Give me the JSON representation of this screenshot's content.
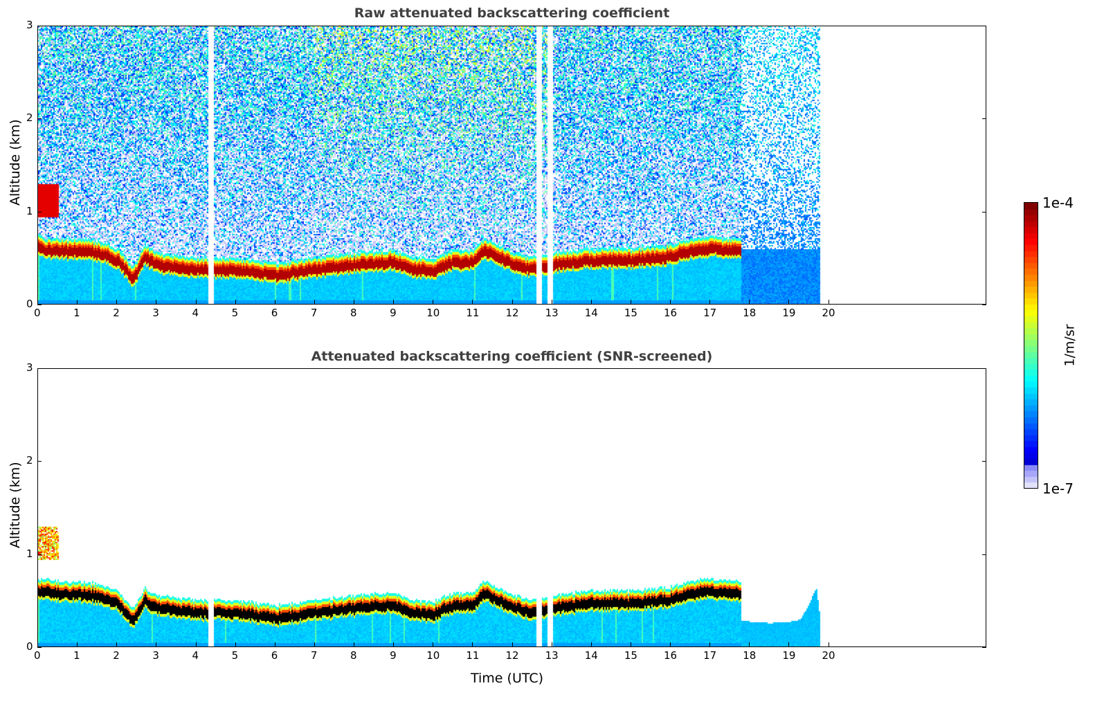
{
  "chart_data": [
    {
      "type": "heatmap",
      "title": "Raw attenuated backscattering coefficient",
      "xlabel": "",
      "ylabel": "Altitude (km)",
      "xlim": [
        0,
        24
      ],
      "ylim": [
        0,
        3
      ],
      "xticks": [
        "0",
        "1",
        "2",
        "3",
        "4",
        "5",
        "6",
        "7",
        "8",
        "9",
        "10",
        "11",
        "12",
        "13",
        "14",
        "15",
        "16",
        "17",
        "18",
        "19",
        "20"
      ],
      "yticks": [
        "0",
        "1",
        "2",
        "3"
      ],
      "data_end_hour": 19.8,
      "layer_top_km": {
        "hours": [
          0,
          0.5,
          1,
          1.5,
          2,
          2.4,
          2.7,
          3,
          4,
          5,
          6,
          7,
          8,
          9,
          9.5,
          10,
          10.5,
          11,
          11.3,
          12,
          12.5,
          13,
          14,
          15,
          16,
          16.5,
          17,
          17.8
        ],
        "values": [
          0.65,
          0.62,
          0.62,
          0.6,
          0.52,
          0.32,
          0.55,
          0.47,
          0.42,
          0.42,
          0.36,
          0.42,
          0.47,
          0.5,
          0.42,
          0.4,
          0.5,
          0.5,
          0.63,
          0.48,
          0.42,
          0.47,
          0.52,
          0.52,
          0.56,
          0.62,
          0.65,
          0.62
        ]
      },
      "gaps_hours": [
        [
          4.3,
          4.42
        ],
        [
          12.62,
          12.75
        ],
        [
          12.9,
          13.02
        ]
      ]
    },
    {
      "type": "heatmap",
      "title": "Attenuated backscattering coefficient (SNR-screened)",
      "xlabel": "Time (UTC)",
      "ylabel": "Altitude (km)",
      "xlim": [
        0,
        24
      ],
      "ylim": [
        0,
        3
      ],
      "xticks": [
        "0",
        "1",
        "2",
        "3",
        "4",
        "5",
        "6",
        "7",
        "8",
        "9",
        "10",
        "11",
        "12",
        "13",
        "14",
        "15",
        "16",
        "17",
        "18",
        "19",
        "20"
      ],
      "yticks": [
        "0",
        "1",
        "2",
        "3"
      ],
      "aerosol_after_17_8_km": {
        "hours": [
          17.9,
          18.5,
          19,
          19.3,
          19.5,
          19.7,
          19.8
        ],
        "values": [
          0.28,
          0.26,
          0.27,
          0.3,
          0.45,
          0.65,
          0.3
        ]
      }
    }
  ],
  "colorbar": {
    "label": "1/m/sr",
    "max_label": "1e-4",
    "min_label": "1e-7",
    "colormap": "jet"
  }
}
